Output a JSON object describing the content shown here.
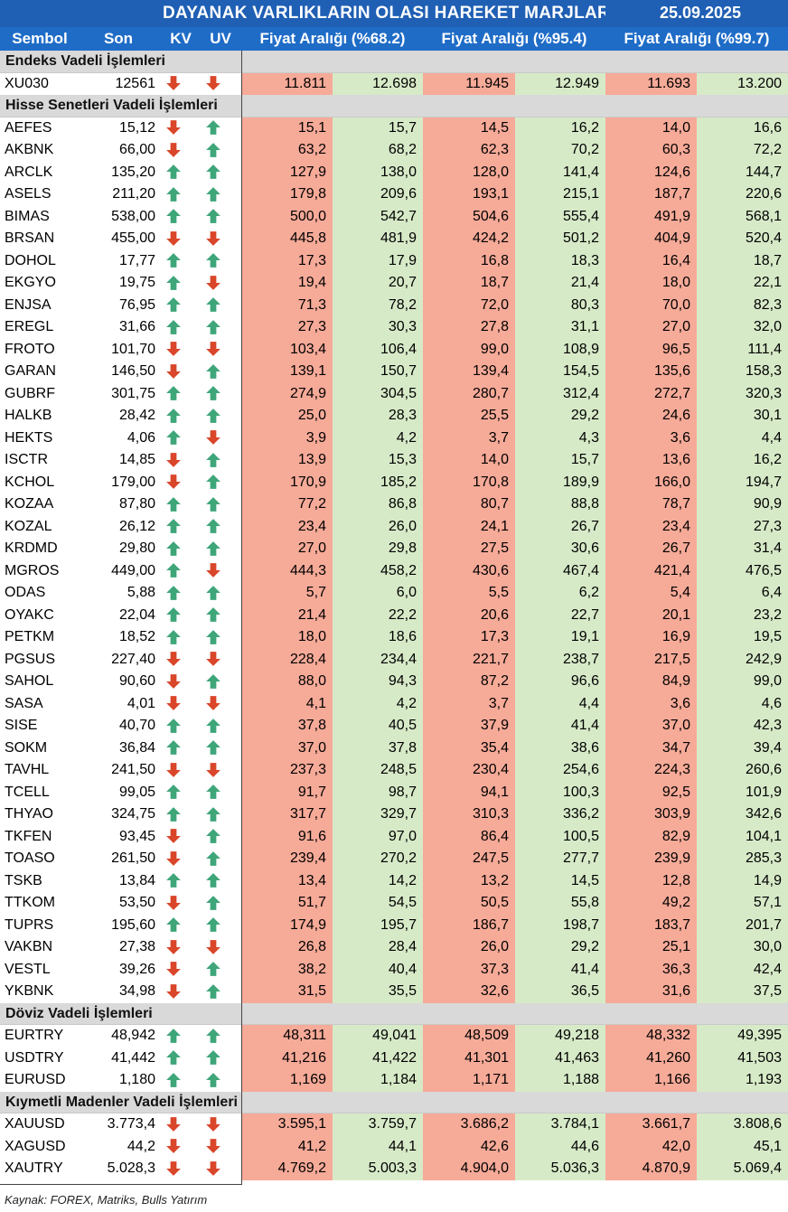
{
  "header": {
    "title": "DAYANAK VARLIKLARIN OLASI HAREKET MARJLARI",
    "date": "25.09.2025"
  },
  "columns": {
    "symbol": "Sembol",
    "last": "Son",
    "kv": "KV",
    "uv": "UV",
    "range1": "Fiyat Aralığı (%68.2)",
    "range2": "Fiyat Aralığı (%95.4)",
    "range3": "Fiyat Aralığı (%99.7)"
  },
  "colors": {
    "header_bg": "#1f6cc7",
    "low_bg": "#f6aa98",
    "high_bg": "#d7eac8",
    "up_arrow": "#3fa67a",
    "down_arrow": "#d9462a"
  },
  "sections": [
    {
      "title": "Endeks Vadeli İşlemleri",
      "rows": [
        {
          "sym": "XU030",
          "son": "12561",
          "kv": "down",
          "uv": "down",
          "v": [
            "11.811",
            "12.698",
            "11.945",
            "12.949",
            "11.693",
            "13.200"
          ]
        }
      ]
    },
    {
      "title": "Hisse Senetleri Vadeli İşlemleri",
      "rows": [
        {
          "sym": "AEFES",
          "son": "15,12",
          "kv": "down",
          "uv": "up",
          "v": [
            "15,1",
            "15,7",
            "14,5",
            "16,2",
            "14,0",
            "16,6"
          ]
        },
        {
          "sym": "AKBNK",
          "son": "66,00",
          "kv": "down",
          "uv": "up",
          "v": [
            "63,2",
            "68,2",
            "62,3",
            "70,2",
            "60,3",
            "72,2"
          ]
        },
        {
          "sym": "ARCLK",
          "son": "135,20",
          "kv": "up",
          "uv": "up",
          "v": [
            "127,9",
            "138,0",
            "128,0",
            "141,4",
            "124,6",
            "144,7"
          ]
        },
        {
          "sym": "ASELS",
          "son": "211,20",
          "kv": "up",
          "uv": "up",
          "v": [
            "179,8",
            "209,6",
            "193,1",
            "215,1",
            "187,7",
            "220,6"
          ]
        },
        {
          "sym": "BIMAS",
          "son": "538,00",
          "kv": "up",
          "uv": "up",
          "v": [
            "500,0",
            "542,7",
            "504,6",
            "555,4",
            "491,9",
            "568,1"
          ]
        },
        {
          "sym": "BRSAN",
          "son": "455,00",
          "kv": "down",
          "uv": "down",
          "v": [
            "445,8",
            "481,9",
            "424,2",
            "501,2",
            "404,9",
            "520,4"
          ]
        },
        {
          "sym": "DOHOL",
          "son": "17,77",
          "kv": "up",
          "uv": "up",
          "v": [
            "17,3",
            "17,9",
            "16,8",
            "18,3",
            "16,4",
            "18,7"
          ]
        },
        {
          "sym": "EKGYO",
          "son": "19,75",
          "kv": "up",
          "uv": "down",
          "v": [
            "19,4",
            "20,7",
            "18,7",
            "21,4",
            "18,0",
            "22,1"
          ]
        },
        {
          "sym": "ENJSA",
          "son": "76,95",
          "kv": "up",
          "uv": "up",
          "v": [
            "71,3",
            "78,2",
            "72,0",
            "80,3",
            "70,0",
            "82,3"
          ]
        },
        {
          "sym": "EREGL",
          "son": "31,66",
          "kv": "up",
          "uv": "up",
          "v": [
            "27,3",
            "30,3",
            "27,8",
            "31,1",
            "27,0",
            "32,0"
          ]
        },
        {
          "sym": "FROTO",
          "son": "101,70",
          "kv": "down",
          "uv": "down",
          "v": [
            "103,4",
            "106,4",
            "99,0",
            "108,9",
            "96,5",
            "111,4"
          ]
        },
        {
          "sym": "GARAN",
          "son": "146,50",
          "kv": "down",
          "uv": "up",
          "v": [
            "139,1",
            "150,7",
            "139,4",
            "154,5",
            "135,6",
            "158,3"
          ]
        },
        {
          "sym": "GUBRF",
          "son": "301,75",
          "kv": "up",
          "uv": "up",
          "v": [
            "274,9",
            "304,5",
            "280,7",
            "312,4",
            "272,7",
            "320,3"
          ]
        },
        {
          "sym": "HALKB",
          "son": "28,42",
          "kv": "up",
          "uv": "up",
          "v": [
            "25,0",
            "28,3",
            "25,5",
            "29,2",
            "24,6",
            "30,1"
          ]
        },
        {
          "sym": "HEKTS",
          "son": "4,06",
          "kv": "up",
          "uv": "down",
          "v": [
            "3,9",
            "4,2",
            "3,7",
            "4,3",
            "3,6",
            "4,4"
          ]
        },
        {
          "sym": "ISCTR",
          "son": "14,85",
          "kv": "down",
          "uv": "up",
          "v": [
            "13,9",
            "15,3",
            "14,0",
            "15,7",
            "13,6",
            "16,2"
          ]
        },
        {
          "sym": "KCHOL",
          "son": "179,00",
          "kv": "down",
          "uv": "up",
          "v": [
            "170,9",
            "185,2",
            "170,8",
            "189,9",
            "166,0",
            "194,7"
          ]
        },
        {
          "sym": "KOZAA",
          "son": "87,80",
          "kv": "up",
          "uv": "up",
          "v": [
            "77,2",
            "86,8",
            "80,7",
            "88,8",
            "78,7",
            "90,9"
          ]
        },
        {
          "sym": "KOZAL",
          "son": "26,12",
          "kv": "up",
          "uv": "up",
          "v": [
            "23,4",
            "26,0",
            "24,1",
            "26,7",
            "23,4",
            "27,3"
          ]
        },
        {
          "sym": "KRDMD",
          "son": "29,80",
          "kv": "up",
          "uv": "up",
          "v": [
            "27,0",
            "29,8",
            "27,5",
            "30,6",
            "26,7",
            "31,4"
          ]
        },
        {
          "sym": "MGROS",
          "son": "449,00",
          "kv": "up",
          "uv": "down",
          "v": [
            "444,3",
            "458,2",
            "430,6",
            "467,4",
            "421,4",
            "476,5"
          ]
        },
        {
          "sym": "ODAS",
          "son": "5,88",
          "kv": "up",
          "uv": "up",
          "v": [
            "5,7",
            "6,0",
            "5,5",
            "6,2",
            "5,4",
            "6,4"
          ]
        },
        {
          "sym": "OYAKC",
          "son": "22,04",
          "kv": "up",
          "uv": "up",
          "v": [
            "21,4",
            "22,2",
            "20,6",
            "22,7",
            "20,1",
            "23,2"
          ]
        },
        {
          "sym": "PETKM",
          "son": "18,52",
          "kv": "up",
          "uv": "up",
          "v": [
            "18,0",
            "18,6",
            "17,3",
            "19,1",
            "16,9",
            "19,5"
          ]
        },
        {
          "sym": "PGSUS",
          "son": "227,40",
          "kv": "down",
          "uv": "down",
          "v": [
            "228,4",
            "234,4",
            "221,7",
            "238,7",
            "217,5",
            "242,9"
          ]
        },
        {
          "sym": "SAHOL",
          "son": "90,60",
          "kv": "down",
          "uv": "up",
          "v": [
            "88,0",
            "94,3",
            "87,2",
            "96,6",
            "84,9",
            "99,0"
          ]
        },
        {
          "sym": "SASA",
          "son": "4,01",
          "kv": "down",
          "uv": "down",
          "v": [
            "4,1",
            "4,2",
            "3,7",
            "4,4",
            "3,6",
            "4,6"
          ]
        },
        {
          "sym": "SISE",
          "son": "40,70",
          "kv": "up",
          "uv": "up",
          "v": [
            "37,8",
            "40,5",
            "37,9",
            "41,4",
            "37,0",
            "42,3"
          ]
        },
        {
          "sym": "SOKM",
          "son": "36,84",
          "kv": "up",
          "uv": "up",
          "v": [
            "37,0",
            "37,8",
            "35,4",
            "38,6",
            "34,7",
            "39,4"
          ]
        },
        {
          "sym": "TAVHL",
          "son": "241,50",
          "kv": "down",
          "uv": "down",
          "v": [
            "237,3",
            "248,5",
            "230,4",
            "254,6",
            "224,3",
            "260,6"
          ]
        },
        {
          "sym": "TCELL",
          "son": "99,05",
          "kv": "up",
          "uv": "up",
          "v": [
            "91,7",
            "98,7",
            "94,1",
            "100,3",
            "92,5",
            "101,9"
          ]
        },
        {
          "sym": "THYAO",
          "son": "324,75",
          "kv": "up",
          "uv": "up",
          "v": [
            "317,7",
            "329,7",
            "310,3",
            "336,2",
            "303,9",
            "342,6"
          ]
        },
        {
          "sym": "TKFEN",
          "son": "93,45",
          "kv": "down",
          "uv": "up",
          "v": [
            "91,6",
            "97,0",
            "86,4",
            "100,5",
            "82,9",
            "104,1"
          ]
        },
        {
          "sym": "TOASO",
          "son": "261,50",
          "kv": "down",
          "uv": "up",
          "v": [
            "239,4",
            "270,2",
            "247,5",
            "277,7",
            "239,9",
            "285,3"
          ]
        },
        {
          "sym": "TSKB",
          "son": "13,84",
          "kv": "up",
          "uv": "up",
          "v": [
            "13,4",
            "14,2",
            "13,2",
            "14,5",
            "12,8",
            "14,9"
          ]
        },
        {
          "sym": "TTKOM",
          "son": "53,50",
          "kv": "down",
          "uv": "up",
          "v": [
            "51,7",
            "54,5",
            "50,5",
            "55,8",
            "49,2",
            "57,1"
          ]
        },
        {
          "sym": "TUPRS",
          "son": "195,60",
          "kv": "up",
          "uv": "up",
          "v": [
            "174,9",
            "195,7",
            "186,7",
            "198,7",
            "183,7",
            "201,7"
          ]
        },
        {
          "sym": "VAKBN",
          "son": "27,38",
          "kv": "down",
          "uv": "down",
          "v": [
            "26,8",
            "28,4",
            "26,0",
            "29,2",
            "25,1",
            "30,0"
          ]
        },
        {
          "sym": "VESTL",
          "son": "39,26",
          "kv": "down",
          "uv": "up",
          "v": [
            "38,2",
            "40,4",
            "37,3",
            "41,4",
            "36,3",
            "42,4"
          ]
        },
        {
          "sym": "YKBNK",
          "son": "34,98",
          "kv": "down",
          "uv": "up",
          "v": [
            "31,5",
            "35,5",
            "32,6",
            "36,5",
            "31,6",
            "37,5"
          ]
        }
      ]
    },
    {
      "title": "Döviz Vadeli İşlemleri",
      "rows": [
        {
          "sym": "EURTRY",
          "son": "48,942",
          "kv": "up",
          "uv": "up",
          "v": [
            "48,311",
            "49,041",
            "48,509",
            "49,218",
            "48,332",
            "49,395"
          ]
        },
        {
          "sym": "USDTRY",
          "son": "41,442",
          "kv": "up",
          "uv": "up",
          "v": [
            "41,216",
            "41,422",
            "41,301",
            "41,463",
            "41,260",
            "41,503"
          ]
        },
        {
          "sym": "EURUSD",
          "son": "1,180",
          "kv": "up",
          "uv": "up",
          "v": [
            "1,169",
            "1,184",
            "1,171",
            "1,188",
            "1,166",
            "1,193"
          ]
        }
      ]
    },
    {
      "title": "Kıymetli Madenler Vadeli İşlemleri",
      "rows": [
        {
          "sym": "XAUUSD",
          "son": "3.773,4",
          "kv": "down",
          "uv": "down",
          "v": [
            "3.595,1",
            "3.759,7",
            "3.686,2",
            "3.784,1",
            "3.661,7",
            "3.808,6"
          ]
        },
        {
          "sym": "XAGUSD",
          "son": "44,2",
          "kv": "down",
          "uv": "down",
          "v": [
            "41,2",
            "44,1",
            "42,6",
            "44,6",
            "42,0",
            "45,1"
          ]
        },
        {
          "sym": "XAUTRY",
          "son": "5.028,3",
          "kv": "down",
          "uv": "down",
          "v": [
            "4.769,2",
            "5.003,3",
            "4.904,0",
            "5.036,3",
            "4.870,9",
            "5.069,4"
          ]
        }
      ]
    }
  ],
  "footer": {
    "source": "Kaynak: FOREX, Matriks, Bulls Yatırım"
  }
}
